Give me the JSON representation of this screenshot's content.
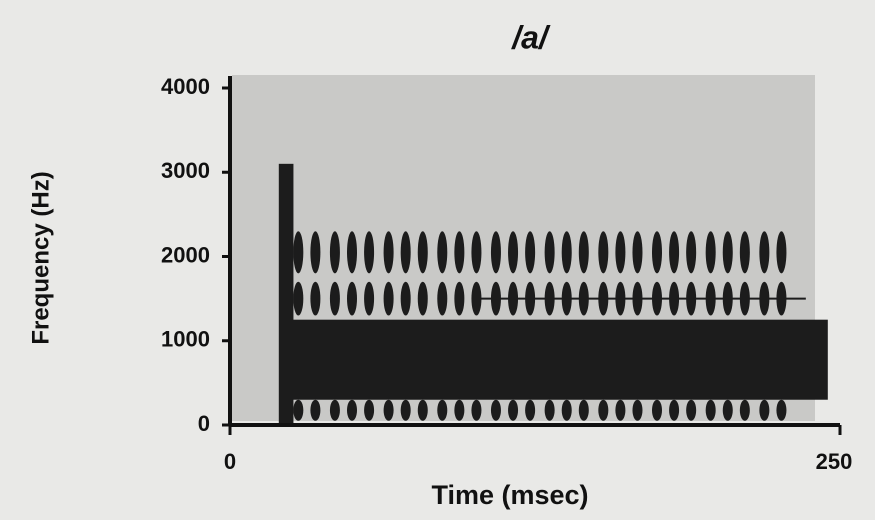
{
  "chart_data": {
    "type": "spectrogram",
    "title": "/a/",
    "x_label": "Time (msec)",
    "y_label": "Frequency (Hz)",
    "xlim": [
      0,
      250
    ],
    "ylim": [
      0,
      4000
    ],
    "xticks": [
      0,
      250
    ],
    "yticks": [
      0,
      1000,
      2000,
      3000,
      4000
    ],
    "color": "#1c1c1c",
    "background": "#c9c9c7",
    "voicing": [
      22,
      245
    ],
    "burst": {
      "x": [
        20,
        26
      ],
      "y": [
        0,
        3100
      ]
    },
    "bands": [
      {
        "f": [
          300,
          1250
        ],
        "style": "solid"
      },
      {
        "f": [
          50,
          300
        ],
        "style": "pulsed"
      },
      {
        "f": [
          1300,
          1700
        ],
        "style": "pulsed"
      },
      {
        "f": [
          1800,
          2300
        ],
        "style": "pulsed"
      }
    ],
    "pulses": [
      28,
      35,
      43,
      50,
      57,
      65,
      72,
      79,
      87,
      94,
      101,
      109,
      116,
      123,
      131,
      138,
      145,
      153,
      160,
      167,
      175,
      182,
      189,
      197,
      204,
      211,
      219,
      226
    ],
    "reference_line": {
      "y": 1500,
      "x": [
        102,
        236
      ]
    }
  }
}
